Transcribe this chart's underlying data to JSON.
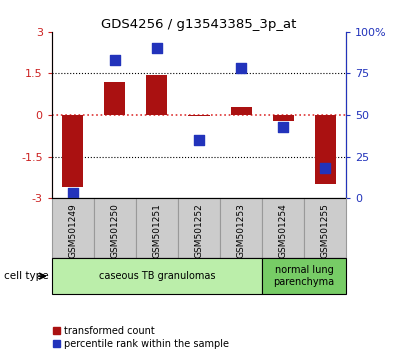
{
  "title": "GDS4256 / g13543385_3p_at",
  "samples": [
    "GSM501249",
    "GSM501250",
    "GSM501251",
    "GSM501252",
    "GSM501253",
    "GSM501254",
    "GSM501255"
  ],
  "transformed_count": [
    -2.6,
    1.2,
    1.45,
    -0.05,
    0.3,
    -0.2,
    -2.5
  ],
  "percentile_rank": [
    3,
    83,
    90,
    35,
    78,
    43,
    18
  ],
  "ylim_left": [
    -3,
    3
  ],
  "ylim_right": [
    0,
    100
  ],
  "yticks_left": [
    -3,
    -1.5,
    0,
    1.5,
    3
  ],
  "yticks_right": [
    0,
    25,
    50,
    75,
    100
  ],
  "ytick_labels_right": [
    "0",
    "25",
    "50",
    "75",
    "100%"
  ],
  "ytick_labels_left": [
    "-3",
    "-1.5",
    "0",
    "1.5",
    "3"
  ],
  "bar_color": "#aa1111",
  "square_color": "#2233bb",
  "bar_width": 0.5,
  "cell_type_groups": [
    {
      "label": "caseous TB granulomas",
      "indices": [
        0,
        1,
        2,
        3,
        4
      ],
      "color": "#bbeeaa"
    },
    {
      "label": "normal lung\nparenchyma",
      "indices": [
        5,
        6
      ],
      "color": "#77cc66"
    }
  ],
  "legend_bar_label": "transformed count",
  "legend_square_label": "percentile rank within the sample",
  "cell_type_label": "cell type",
  "tick_label_color_left": "#cc2222",
  "tick_label_color_right": "#2233bb",
  "gray_box_color": "#cccccc",
  "gray_box_edge_color": "#999999"
}
